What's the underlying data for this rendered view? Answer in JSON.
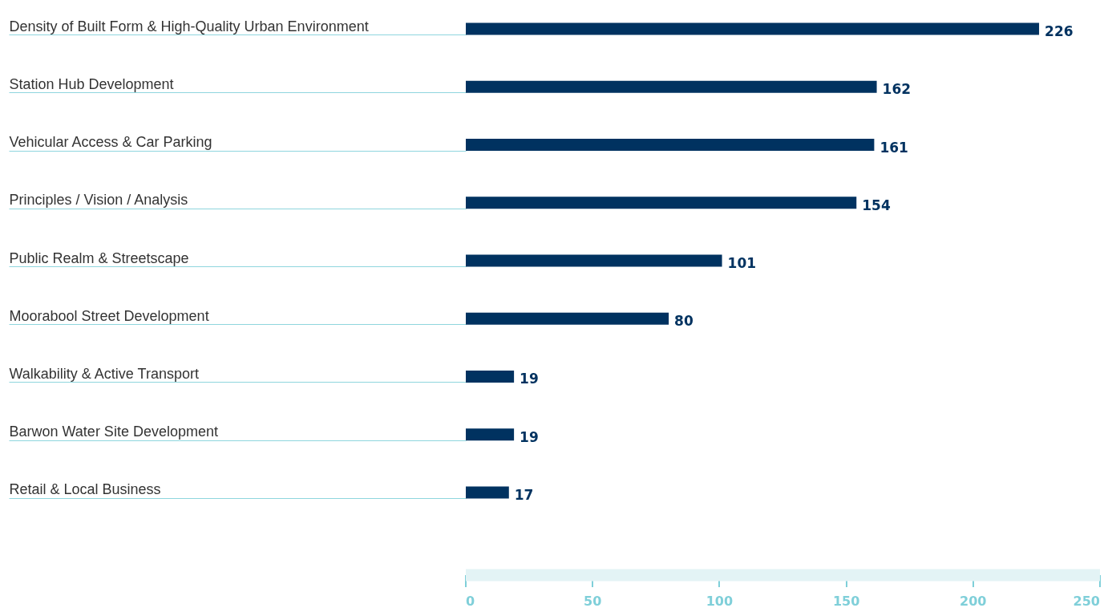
{
  "chart_data": {
    "type": "bar",
    "orientation": "horizontal",
    "categories": [
      "Density of Built Form & High-Quality Urban Environment",
      "Station Hub Development",
      "Vehicular Access & Car Parking",
      "Principles / Vision / Analysis",
      "Public Realm & Streetscape",
      "Moorabool Street Development",
      "Walkability & Active Transport",
      "Barwon Water Site Development",
      "Retail & Local Business"
    ],
    "values": [
      226,
      162,
      161,
      154,
      101,
      80,
      19,
      19,
      17
    ],
    "color": "#003260",
    "xlim": [
      0,
      250
    ],
    "xticks": [
      0,
      50,
      100,
      150,
      200,
      250
    ],
    "data_labels": true,
    "grid": false
  }
}
